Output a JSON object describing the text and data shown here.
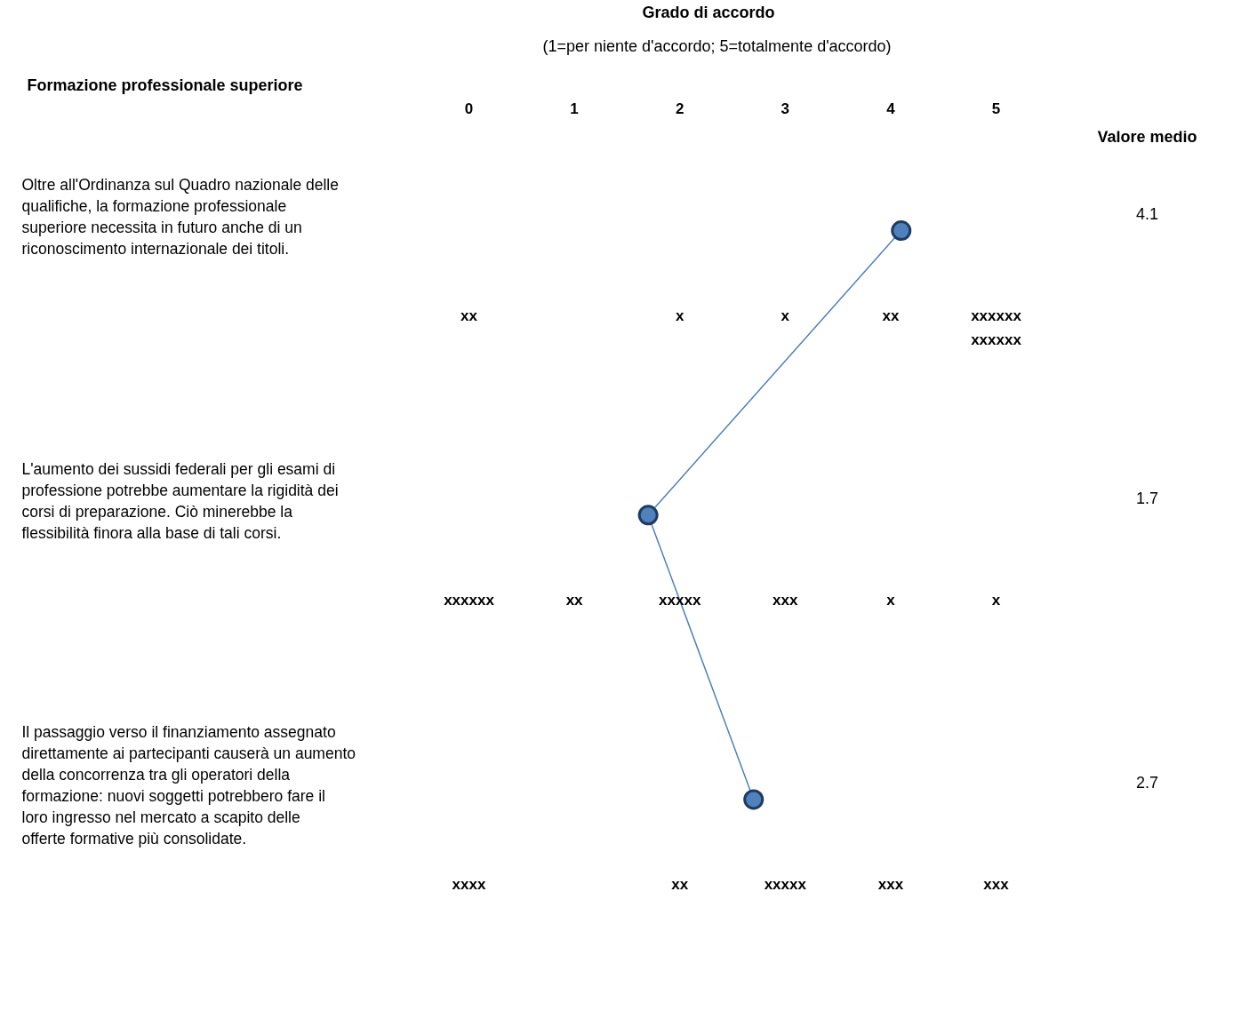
{
  "chart_data": {
    "type": "line",
    "orientation": "horizontal",
    "title": "Formazione professionale superiore",
    "xlabel": "Grado di accordo",
    "subtitle": "(1=per niente d'accordo; 5=totalmente d'accordo)",
    "categories": [
      "Oltre all'Ordinanza sul Quadro nazionale delle qualifiche, la formazione professionale superiore necessita in futuro anche di un riconoscimento internazionale dei titoli.",
      "L'aumento dei sussidi federali per gli esami di professione potrebbe aumentare la rigidità dei corsi di preparazione. Ciò minerebbe la flessibilità finora alla base di tali corsi.",
      "Il passaggio verso il finanziamento assegnato direttamente ai partecipanti causerà un aumento della concorrenza tra gli operatori della formazione: nuovi soggetti potrebbero fare il loro ingresso nel mercato a scapito delle offerte formative più consolidate."
    ],
    "series": [
      {
        "color": "#4f81bd",
        "values": [
          4.1,
          1.7,
          2.7
        ],
        "value_labels": [
          "4.1",
          "1.7",
          "2.7"
        ]
      }
    ],
    "marker": "circle",
    "xlim": [
      0,
      5
    ],
    "xticks": [
      0,
      1,
      2,
      3,
      4,
      5
    ],
    "grid": false,
    "annotations": [
      "Valore medio",
      "xx",
      "x",
      "x",
      "xx",
      "xxxxxx\nxxxxxx",
      "xxxxxx",
      "xx",
      "xxxxx",
      "xxx",
      "x",
      "x",
      "xxxx",
      "xx",
      "xxxxx",
      "xxx",
      "xxx"
    ]
  }
}
